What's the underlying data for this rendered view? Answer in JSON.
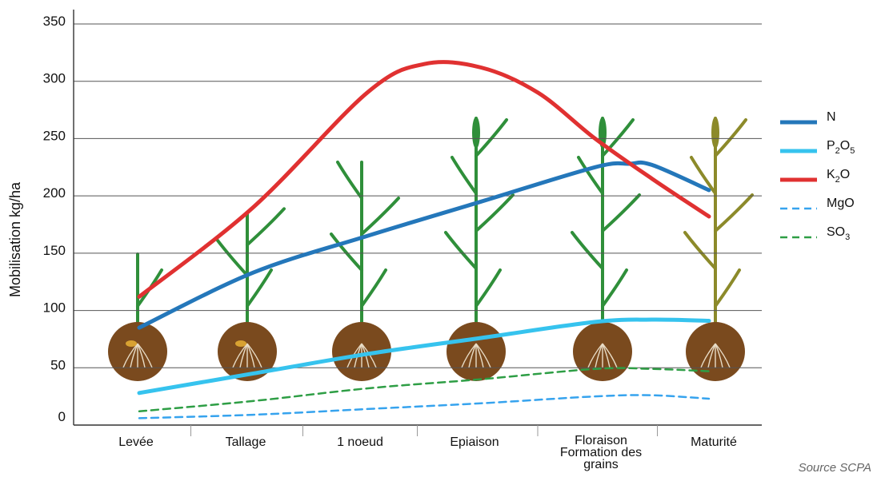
{
  "chart_data": {
    "type": "line",
    "ylabel": "Mobilisation kg/ha",
    "xlabel": "",
    "ylim": [
      0,
      350
    ],
    "yticks": [
      0,
      50,
      100,
      150,
      200,
      250,
      300,
      350
    ],
    "categories": [
      "Levée",
      "Tallage",
      "1 noeud",
      "Epiaison",
      "Floraison\nFormation des grains",
      "Maturité"
    ],
    "grid": true,
    "legend_position": "right",
    "series": [
      {
        "name": "N",
        "color": "#2477ba",
        "dash": "solid",
        "points": [
          [
            0,
            85
          ],
          [
            1.0,
            133
          ],
          [
            2.0,
            165
          ],
          [
            3.0,
            195
          ],
          [
            4.0,
            225
          ],
          [
            4.3,
            228
          ],
          [
            4.5,
            227
          ],
          [
            5.0,
            205
          ]
        ]
      },
      {
        "name": "P2O5",
        "color": "#36c3ee",
        "dash": "solid",
        "points": [
          [
            0,
            28
          ],
          [
            1.0,
            45
          ],
          [
            2.0,
            62
          ],
          [
            3.0,
            76
          ],
          [
            4.0,
            90
          ],
          [
            4.5,
            92
          ],
          [
            5.0,
            91
          ]
        ]
      },
      {
        "name": "K2O",
        "color": "#e03131",
        "dash": "solid",
        "points": [
          [
            0,
            112
          ],
          [
            1.0,
            190
          ],
          [
            2.0,
            290
          ],
          [
            2.5,
            315
          ],
          [
            3.0,
            312
          ],
          [
            3.5,
            290
          ],
          [
            4.0,
            250
          ],
          [
            4.5,
            215
          ],
          [
            5.0,
            182
          ]
        ]
      },
      {
        "name": "MgO",
        "color": "#36a3ee",
        "dash": "dashed",
        "points": [
          [
            0,
            6
          ],
          [
            1.0,
            9
          ],
          [
            2.0,
            14
          ],
          [
            3.0,
            19
          ],
          [
            4.0,
            25
          ],
          [
            4.5,
            26
          ],
          [
            5.0,
            23
          ]
        ]
      },
      {
        "name": "SO3",
        "color": "#2e9e45",
        "dash": "dashed",
        "points": [
          [
            0,
            12
          ],
          [
            1.0,
            21
          ],
          [
            2.0,
            32
          ],
          [
            3.0,
            40
          ],
          [
            4.0,
            49
          ],
          [
            4.5,
            49
          ],
          [
            5.0,
            47
          ]
        ]
      }
    ],
    "legend": [
      {
        "label_main": "N",
        "sub1": "",
        "mid": "",
        "sub2": "",
        "color": "#2477ba",
        "dash": "solid"
      },
      {
        "label_main": "P",
        "sub1": "2",
        "mid": "O",
        "sub2": "5",
        "color": "#36c3ee",
        "dash": "solid"
      },
      {
        "label_main": "K",
        "sub1": "2",
        "mid": "O",
        "sub2": "",
        "color": "#e03131",
        "dash": "solid"
      },
      {
        "label_main": "MgO",
        "sub1": "",
        "mid": "",
        "sub2": "",
        "color": "#36a3ee",
        "dash": "dashed"
      },
      {
        "label_main": "SO",
        "sub1": "3",
        "mid": "",
        "sub2": "",
        "color": "#2e9e45",
        "dash": "dashed"
      }
    ],
    "source": "Source SCPA"
  },
  "colors": {
    "soil": "#7a4a1e",
    "plant_green": "#2f8f3a",
    "plant_mature": "#8c8a2a",
    "axis": "#333333",
    "grid": "#555555"
  }
}
